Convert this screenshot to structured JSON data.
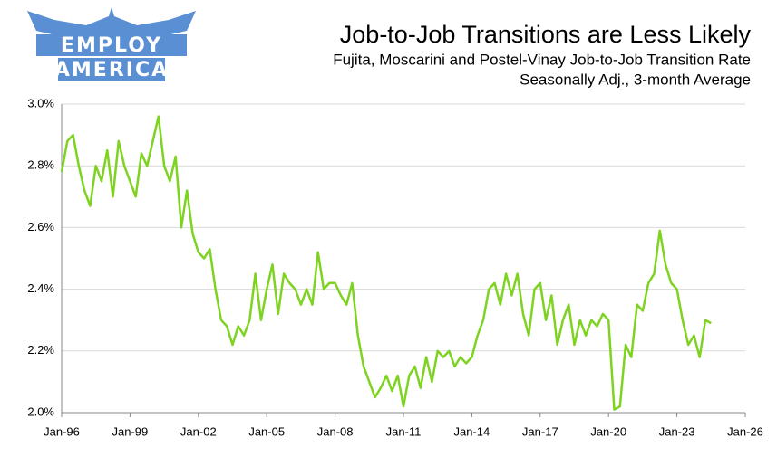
{
  "logo": {
    "line1": "EMPLOY",
    "line2": "AMERICA"
  },
  "chart_data": {
    "type": "line",
    "title": "Job-to-Job Transitions are Less Likely",
    "subtitle": "Fujita, Moscarini and Postel-Vinay Job-to-Job Transition Rate",
    "subtitle2": "Seasonally Adj., 3-month Average",
    "x": [
      "1996-01",
      "1996-04",
      "1996-07",
      "1996-10",
      "1997-01",
      "1997-04",
      "1997-07",
      "1997-10",
      "1998-01",
      "1998-04",
      "1998-07",
      "1998-10",
      "1999-01",
      "1999-04",
      "1999-07",
      "1999-10",
      "2000-01",
      "2000-04",
      "2000-07",
      "2000-10",
      "2001-01",
      "2001-04",
      "2001-07",
      "2001-10",
      "2002-01",
      "2002-04",
      "2002-07",
      "2002-10",
      "2003-01",
      "2003-04",
      "2003-07",
      "2003-10",
      "2004-01",
      "2004-04",
      "2004-07",
      "2004-10",
      "2005-01",
      "2005-04",
      "2005-07",
      "2005-10",
      "2006-01",
      "2006-04",
      "2006-07",
      "2006-10",
      "2007-01",
      "2007-04",
      "2007-07",
      "2007-10",
      "2008-01",
      "2008-04",
      "2008-07",
      "2008-10",
      "2009-01",
      "2009-04",
      "2009-07",
      "2009-10",
      "2010-01",
      "2010-04",
      "2010-07",
      "2010-10",
      "2011-01",
      "2011-04",
      "2011-07",
      "2011-10",
      "2012-01",
      "2012-04",
      "2012-07",
      "2012-10",
      "2013-01",
      "2013-04",
      "2013-07",
      "2013-10",
      "2014-01",
      "2014-04",
      "2014-07",
      "2014-10",
      "2015-01",
      "2015-04",
      "2015-07",
      "2015-10",
      "2016-01",
      "2016-04",
      "2016-07",
      "2016-10",
      "2017-01",
      "2017-04",
      "2017-07",
      "2017-10",
      "2018-01",
      "2018-04",
      "2018-07",
      "2018-10",
      "2019-01",
      "2019-04",
      "2019-07",
      "2019-10",
      "2020-01",
      "2020-04",
      "2020-07",
      "2020-10",
      "2021-01",
      "2021-04",
      "2021-07",
      "2021-10",
      "2022-01",
      "2022-04",
      "2022-07",
      "2022-10",
      "2023-01",
      "2023-04",
      "2023-07",
      "2023-10",
      "2024-01",
      "2024-04",
      "2024-07"
    ],
    "series": [
      {
        "name": "Job-to-Job Transition Rate",
        "color": "#7ed321",
        "values": [
          2.78,
          2.88,
          2.9,
          2.8,
          2.72,
          2.67,
          2.8,
          2.75,
          2.85,
          2.7,
          2.88,
          2.8,
          2.75,
          2.7,
          2.84,
          2.8,
          2.88,
          2.96,
          2.8,
          2.75,
          2.83,
          2.6,
          2.72,
          2.58,
          2.52,
          2.5,
          2.53,
          2.4,
          2.3,
          2.28,
          2.22,
          2.28,
          2.25,
          2.3,
          2.45,
          2.3,
          2.4,
          2.48,
          2.32,
          2.45,
          2.42,
          2.4,
          2.35,
          2.4,
          2.35,
          2.52,
          2.4,
          2.42,
          2.42,
          2.38,
          2.35,
          2.42,
          2.25,
          2.15,
          2.1,
          2.05,
          2.08,
          2.12,
          2.07,
          2.12,
          2.02,
          2.12,
          2.15,
          2.08,
          2.18,
          2.1,
          2.2,
          2.18,
          2.2,
          2.15,
          2.18,
          2.16,
          2.18,
          2.25,
          2.3,
          2.4,
          2.42,
          2.35,
          2.45,
          2.38,
          2.45,
          2.32,
          2.25,
          2.4,
          2.42,
          2.3,
          2.38,
          2.22,
          2.3,
          2.35,
          2.22,
          2.3,
          2.25,
          2.3,
          2.28,
          2.32,
          2.3,
          2.01,
          2.02,
          2.22,
          2.18,
          2.35,
          2.33,
          2.42,
          2.45,
          2.59,
          2.48,
          2.42,
          2.4,
          2.3,
          2.22,
          2.25,
          2.18,
          2.3,
          2.29
        ]
      }
    ],
    "xlim": [
      "1996-01",
      "2026-01"
    ],
    "xticks": [
      {
        "value": "1996-01",
        "label": "Jan-96"
      },
      {
        "value": "1999-01",
        "label": "Jan-99"
      },
      {
        "value": "2002-01",
        "label": "Jan-02"
      },
      {
        "value": "2005-01",
        "label": "Jan-05"
      },
      {
        "value": "2008-01",
        "label": "Jan-08"
      },
      {
        "value": "2011-01",
        "label": "Jan-11"
      },
      {
        "value": "2014-01",
        "label": "Jan-14"
      },
      {
        "value": "2017-01",
        "label": "Jan-17"
      },
      {
        "value": "2020-01",
        "label": "Jan-20"
      },
      {
        "value": "2023-01",
        "label": "Jan-23"
      },
      {
        "value": "2026-01",
        "label": "Jan-26"
      }
    ],
    "ylim": [
      2.0,
      3.0
    ],
    "yticks": [
      {
        "value": 2.0,
        "label": "2.0%"
      },
      {
        "value": 2.2,
        "label": "2.2%"
      },
      {
        "value": 2.4,
        "label": "2.4%"
      },
      {
        "value": 2.6,
        "label": "2.6%"
      },
      {
        "value": 2.8,
        "label": "2.8%"
      },
      {
        "value": 3.0,
        "label": "3.0%"
      }
    ],
    "grid": true
  }
}
